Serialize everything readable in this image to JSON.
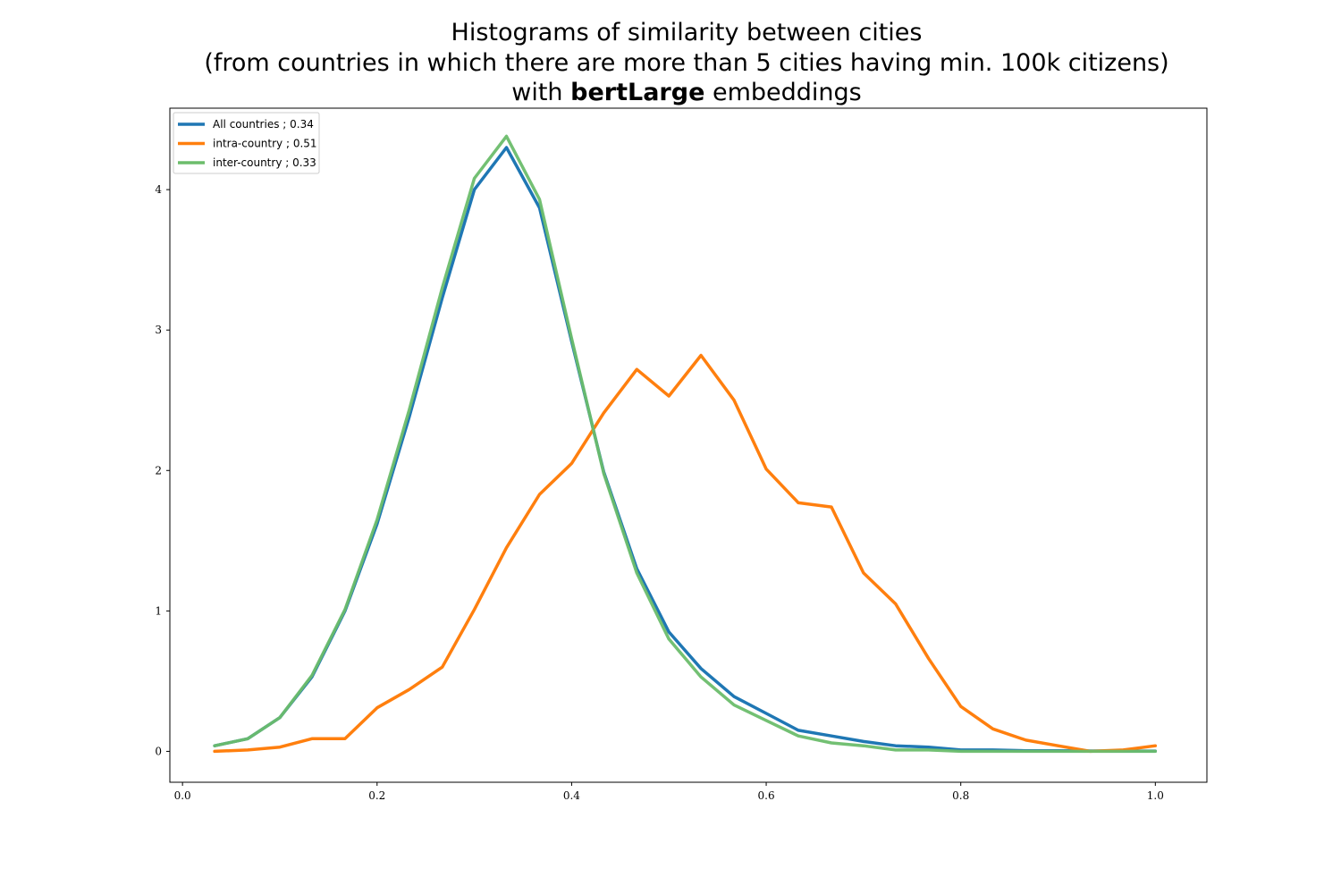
{
  "chart_data": {
    "type": "line",
    "title_lines": [
      "Histograms of similarity between cities",
      "(from countries in which there are more than 5 cities having min. 100k citizens)"
    ],
    "title_line3_prefix": "with ",
    "title_line3_bold": "bertLarge",
    "title_line3_suffix": " embeddings",
    "xlabel": "",
    "ylabel": "",
    "xlim": [
      -0.013,
      1.053
    ],
    "ylim": [
      -0.22,
      4.58
    ],
    "xticks": [
      0.0,
      0.2,
      0.4,
      0.6,
      0.8,
      1.0
    ],
    "xtick_labels": [
      "0.0",
      "0.2",
      "0.4",
      "0.6",
      "0.8",
      "1.0"
    ],
    "yticks": [
      0,
      1,
      2,
      3,
      4
    ],
    "ytick_labels": [
      "0",
      "1",
      "2",
      "3",
      "4"
    ],
    "grid": false,
    "legend_position": "top-left",
    "x": [
      0.033,
      0.067,
      0.1,
      0.133,
      0.167,
      0.2,
      0.233,
      0.267,
      0.3,
      0.333,
      0.367,
      0.4,
      0.433,
      0.467,
      0.5,
      0.533,
      0.567,
      0.6,
      0.633,
      0.667,
      0.7,
      0.733,
      0.767,
      0.8,
      0.833,
      0.867,
      0.9,
      0.933,
      0.967,
      1.0
    ],
    "series": [
      {
        "name": "All countries ; 0.34",
        "color": "#1f77b4",
        "values": [
          0.04,
          0.09,
          0.24,
          0.53,
          1.0,
          1.62,
          2.38,
          3.23,
          4.0,
          4.3,
          3.87,
          2.92,
          1.99,
          1.3,
          0.85,
          0.59,
          0.39,
          0.27,
          0.15,
          0.11,
          0.07,
          0.04,
          0.03,
          0.01,
          0.01,
          0.005,
          0.005,
          0.003,
          0.002,
          0.002
        ]
      },
      {
        "name": "intra-country ; 0.51",
        "color": "#ff7f0e",
        "values": [
          0.0,
          0.01,
          0.03,
          0.09,
          0.09,
          0.31,
          0.44,
          0.6,
          1.01,
          1.45,
          1.83,
          2.05,
          2.41,
          2.72,
          2.53,
          2.82,
          2.5,
          2.01,
          1.77,
          1.74,
          1.27,
          1.05,
          0.66,
          0.32,
          0.16,
          0.08,
          0.04,
          0.0,
          0.01,
          0.04
        ]
      },
      {
        "name": "inter-country ; 0.33",
        "color": "#6cbd6b",
        "values": [
          0.04,
          0.09,
          0.24,
          0.54,
          1.01,
          1.65,
          2.43,
          3.3,
          4.08,
          4.38,
          3.93,
          2.94,
          1.98,
          1.27,
          0.8,
          0.53,
          0.33,
          0.22,
          0.11,
          0.06,
          0.04,
          0.01,
          0.01,
          0.0,
          0.0,
          0.0,
          0.0,
          0.0,
          0.0,
          0.0
        ]
      }
    ]
  }
}
